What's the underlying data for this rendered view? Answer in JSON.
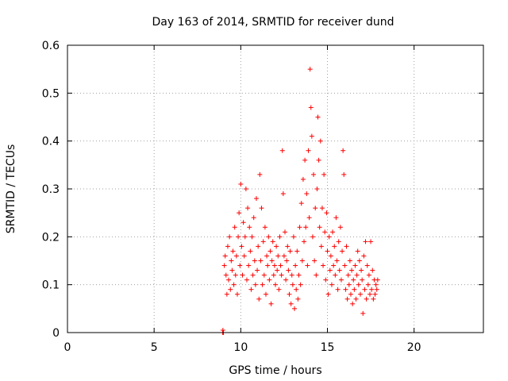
{
  "chart_data": {
    "type": "scatter",
    "title": "Day 163 of 2014, SRMTID for receiver dund",
    "xlabel": "GPS time / hours",
    "ylabel": "SRMTID / TECUs",
    "xlim": [
      0,
      24
    ],
    "ylim": [
      0,
      0.6
    ],
    "xticks": [
      0,
      5,
      10,
      15,
      20
    ],
    "yticks": [
      0,
      0.1,
      0.2,
      0.3,
      0.4,
      0.5,
      0.6
    ],
    "xtick_labels": [
      "0",
      "5",
      "10",
      "15",
      "20"
    ],
    "ytick_labels": [
      "0",
      "0.1",
      "0.2",
      "0.3",
      "0.4",
      "0.5",
      "0.6"
    ],
    "grid": true,
    "marker": "plus",
    "color": "#ff0000",
    "series": [
      {
        "points": [
          [
            8.95,
            0.0
          ],
          [
            8.97,
            0.005
          ],
          [
            9.0,
            0.0
          ],
          [
            9.05,
            0.14
          ],
          [
            9.1,
            0.16
          ],
          [
            9.15,
            0.12
          ],
          [
            9.2,
            0.08
          ],
          [
            9.25,
            0.18
          ],
          [
            9.3,
            0.11
          ],
          [
            9.35,
            0.2
          ],
          [
            9.4,
            0.09
          ],
          [
            9.45,
            0.15
          ],
          [
            9.5,
            0.13
          ],
          [
            9.55,
            0.17
          ],
          [
            9.6,
            0.1
          ],
          [
            9.65,
            0.22
          ],
          [
            9.7,
            0.12
          ],
          [
            9.75,
            0.16
          ],
          [
            9.8,
            0.08
          ],
          [
            9.85,
            0.2
          ],
          [
            9.9,
            0.25
          ],
          [
            9.95,
            0.14
          ],
          [
            10.0,
            0.31
          ],
          [
            10.05,
            0.18
          ],
          [
            10.1,
            0.12
          ],
          [
            10.15,
            0.23
          ],
          [
            10.2,
            0.16
          ],
          [
            10.25,
            0.2
          ],
          [
            10.3,
            0.3
          ],
          [
            10.35,
            0.11
          ],
          [
            10.4,
            0.26
          ],
          [
            10.45,
            0.14
          ],
          [
            10.5,
            0.22
          ],
          [
            10.55,
            0.17
          ],
          [
            10.6,
            0.09
          ],
          [
            10.65,
            0.2
          ],
          [
            10.7,
            0.12
          ],
          [
            10.75,
            0.24
          ],
          [
            10.8,
            0.15
          ],
          [
            10.85,
            0.1
          ],
          [
            10.9,
            0.28
          ],
          [
            10.95,
            0.13
          ],
          [
            11.0,
            0.18
          ],
          [
            11.05,
            0.07
          ],
          [
            11.1,
            0.33
          ],
          [
            11.15,
            0.15
          ],
          [
            11.2,
            0.26
          ],
          [
            11.25,
            0.1
          ],
          [
            11.3,
            0.19
          ],
          [
            11.35,
            0.12
          ],
          [
            11.4,
            0.22
          ],
          [
            11.45,
            0.08
          ],
          [
            11.5,
            0.16
          ],
          [
            11.55,
            0.14
          ],
          [
            11.6,
            0.2
          ],
          [
            11.65,
            0.11
          ],
          [
            11.7,
            0.17
          ],
          [
            11.75,
            0.06
          ],
          [
            11.8,
            0.15
          ],
          [
            11.85,
            0.19
          ],
          [
            11.9,
            0.12
          ],
          [
            11.95,
            0.14
          ],
          [
            12.0,
            0.1
          ],
          [
            12.05,
            0.18
          ],
          [
            12.1,
            0.13
          ],
          [
            12.15,
            0.16
          ],
          [
            12.2,
            0.09
          ],
          [
            12.25,
            0.2
          ],
          [
            12.3,
            0.14
          ],
          [
            12.35,
            0.12
          ],
          [
            12.4,
            0.38
          ],
          [
            12.45,
            0.29
          ],
          [
            12.5,
            0.16
          ],
          [
            12.55,
            0.21
          ],
          [
            12.6,
            0.11
          ],
          [
            12.65,
            0.15
          ],
          [
            12.7,
            0.18
          ],
          [
            12.75,
            0.13
          ],
          [
            12.8,
            0.08
          ],
          [
            12.85,
            0.17
          ],
          [
            12.9,
            0.06
          ],
          [
            12.95,
            0.12
          ],
          [
            13.0,
            0.1
          ],
          [
            13.05,
            0.2
          ],
          [
            13.1,
            0.05
          ],
          [
            13.15,
            0.14
          ],
          [
            13.2,
            0.09
          ],
          [
            13.25,
            0.17
          ],
          [
            13.3,
            0.07
          ],
          [
            13.35,
            0.12
          ],
          [
            13.4,
            0.22
          ],
          [
            13.45,
            0.1
          ],
          [
            13.5,
            0.27
          ],
          [
            13.55,
            0.15
          ],
          [
            13.6,
            0.32
          ],
          [
            13.65,
            0.19
          ],
          [
            13.7,
            0.36
          ],
          [
            13.75,
            0.22
          ],
          [
            13.8,
            0.29
          ],
          [
            13.85,
            0.14
          ],
          [
            13.9,
            0.38
          ],
          [
            13.95,
            0.24
          ],
          [
            14.0,
            0.55
          ],
          [
            14.05,
            0.47
          ],
          [
            14.1,
            0.41
          ],
          [
            14.15,
            0.2
          ],
          [
            14.2,
            0.33
          ],
          [
            14.25,
            0.15
          ],
          [
            14.3,
            0.26
          ],
          [
            14.35,
            0.12
          ],
          [
            14.4,
            0.3
          ],
          [
            14.45,
            0.45
          ],
          [
            14.5,
            0.36
          ],
          [
            14.55,
            0.22
          ],
          [
            14.6,
            0.4
          ],
          [
            14.65,
            0.18
          ],
          [
            14.7,
            0.26
          ],
          [
            14.75,
            0.14
          ],
          [
            14.8,
            0.33
          ],
          [
            14.85,
            0.21
          ],
          [
            14.9,
            0.11
          ],
          [
            14.95,
            0.25
          ],
          [
            15.0,
            0.17
          ],
          [
            15.05,
            0.08
          ],
          [
            15.1,
            0.2
          ],
          [
            15.15,
            0.13
          ],
          [
            15.2,
            0.16
          ],
          [
            15.25,
            0.1
          ],
          [
            15.3,
            0.21
          ],
          [
            15.35,
            0.14
          ],
          [
            15.4,
            0.18
          ],
          [
            15.45,
            0.12
          ],
          [
            15.5,
            0.24
          ],
          [
            15.55,
            0.15
          ],
          [
            15.6,
            0.09
          ],
          [
            15.65,
            0.19
          ],
          [
            15.7,
            0.13
          ],
          [
            15.75,
            0.22
          ],
          [
            15.8,
            0.11
          ],
          [
            15.85,
            0.17
          ],
          [
            15.9,
            0.38
          ],
          [
            15.95,
            0.33
          ],
          [
            16.0,
            0.14
          ],
          [
            16.05,
            0.09
          ],
          [
            16.1,
            0.18
          ],
          [
            16.15,
            0.07
          ],
          [
            16.2,
            0.12
          ],
          [
            16.25,
            0.1
          ],
          [
            16.3,
            0.15
          ],
          [
            16.35,
            0.08
          ],
          [
            16.4,
            0.13
          ],
          [
            16.45,
            0.06
          ],
          [
            16.5,
            0.11
          ],
          [
            16.55,
            0.09
          ],
          [
            16.6,
            0.14
          ],
          [
            16.65,
            0.07
          ],
          [
            16.7,
            0.12
          ],
          [
            16.75,
            0.17
          ],
          [
            16.8,
            0.1
          ],
          [
            16.85,
            0.15
          ],
          [
            16.9,
            0.08
          ],
          [
            16.95,
            0.13
          ],
          [
            17.0,
            0.11
          ],
          [
            17.05,
            0.04
          ],
          [
            17.1,
            0.16
          ],
          [
            17.15,
            0.09
          ],
          [
            17.2,
            0.19
          ],
          [
            17.25,
            0.07
          ],
          [
            17.3,
            0.14
          ],
          [
            17.35,
            0.1
          ],
          [
            17.4,
            0.12
          ],
          [
            17.45,
            0.08
          ],
          [
            17.5,
            0.19
          ],
          [
            17.55,
            0.09
          ],
          [
            17.6,
            0.13
          ],
          [
            17.65,
            0.07
          ],
          [
            17.7,
            0.11
          ],
          [
            17.75,
            0.08
          ],
          [
            17.8,
            0.1
          ],
          [
            17.85,
            0.09
          ],
          [
            17.9,
            0.11
          ]
        ]
      }
    ]
  }
}
